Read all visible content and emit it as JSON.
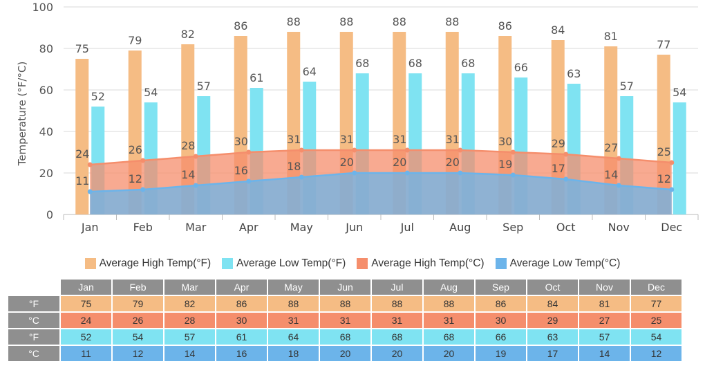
{
  "chart_data": {
    "type": "bar",
    "ylabel": "Temperature (°F/°C)",
    "ylim": [
      0,
      100
    ],
    "yticks": [
      0,
      20,
      40,
      60,
      80,
      100
    ],
    "grid": true,
    "legend_position": "bottom",
    "categories": [
      "Jan",
      "Feb",
      "Mar",
      "Apr",
      "May",
      "Jun",
      "Jul",
      "Aug",
      "Sep",
      "Oct",
      "Nov",
      "Dec"
    ],
    "series": [
      {
        "name": "Average High Temp(°F)",
        "kind": "bar",
        "color": "#f5bc84",
        "values": [
          75,
          79,
          82,
          86,
          88,
          88,
          88,
          88,
          86,
          84,
          81,
          77
        ]
      },
      {
        "name": "Average Low Temp(°F)",
        "kind": "bar",
        "color": "#7fe3f2",
        "values": [
          52,
          54,
          57,
          61,
          64,
          68,
          68,
          68,
          66,
          63,
          57,
          54
        ]
      },
      {
        "name": "Average High Temp(°C)",
        "kind": "area",
        "color": "#f58e6c",
        "values": [
          24,
          26,
          28,
          30,
          31,
          31,
          31,
          31,
          30,
          29,
          27,
          25
        ]
      },
      {
        "name": "Average Low Temp(°C)",
        "kind": "area",
        "color": "#6cb4ea",
        "values": [
          11,
          12,
          14,
          16,
          18,
          20,
          20,
          20,
          19,
          17,
          14,
          12
        ]
      }
    ]
  },
  "table": {
    "rows": [
      {
        "label": "°F",
        "color": "#f5bc84",
        "series": 0
      },
      {
        "label": "°C",
        "color": "#f58e6c",
        "series": 2
      },
      {
        "label": "°F",
        "color": "#7fe3f2",
        "series": 1
      },
      {
        "label": "°C",
        "color": "#6cb4ea",
        "series": 3
      }
    ]
  }
}
